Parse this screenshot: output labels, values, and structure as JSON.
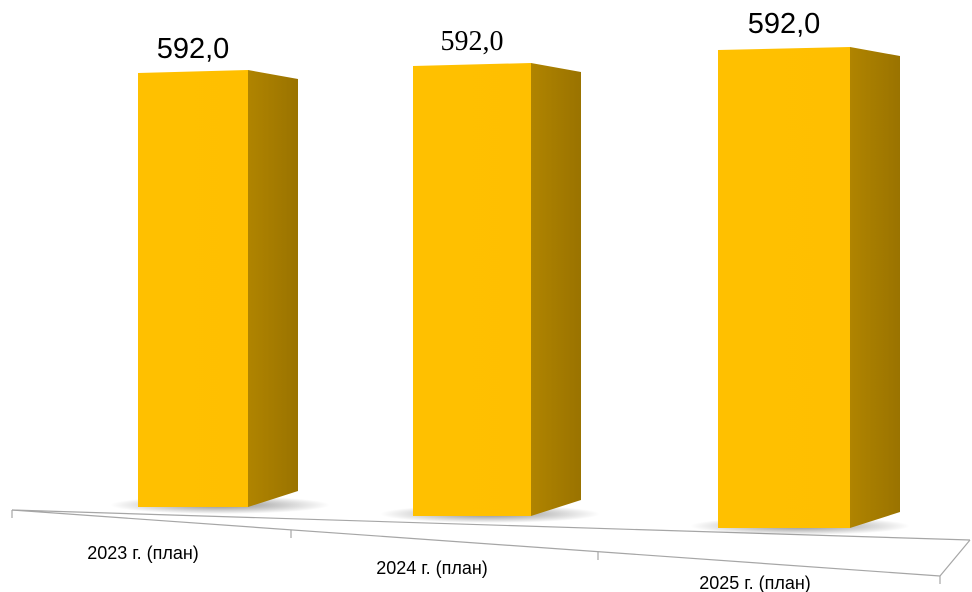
{
  "chart_data": {
    "type": "bar",
    "categories": [
      "2023 г. (план)",
      "2024 г. (план)",
      "2025 г. (план)"
    ],
    "values": [
      592.0,
      592.0,
      592.0
    ],
    "value_labels": [
      "592,0",
      "592,0",
      "592,0"
    ],
    "title": "",
    "xlabel": "",
    "ylabel": "",
    "ylim": [
      0,
      620
    ],
    "grid": false,
    "legend": "none",
    "style": "3d-column",
    "colors": {
      "bar_front": "#FFC000",
      "bar_side": "#A67C00",
      "bar_top": "#FFD34D",
      "floor_line": "#A6A6A6"
    }
  }
}
